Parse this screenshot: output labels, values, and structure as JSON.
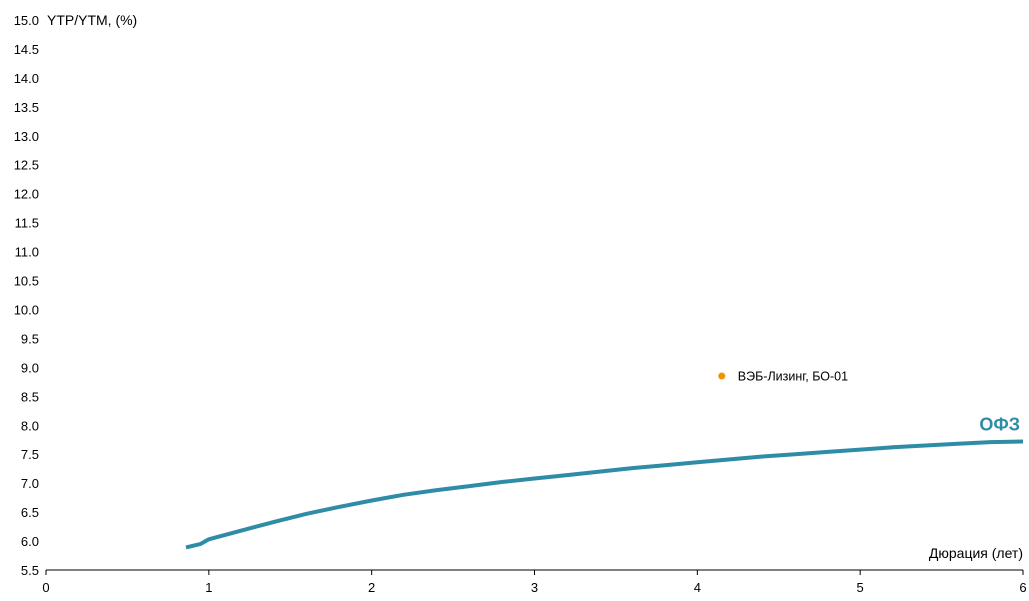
{
  "chart_data": {
    "type": "line",
    "ylabel": "YTP/YTM, (%)",
    "xlabel": "Дюрация (лет)",
    "xlim": [
      0,
      6
    ],
    "ylim": [
      5.5,
      15.0
    ],
    "x_ticks": [
      "0",
      "1",
      "2",
      "3",
      "4",
      "5",
      "6"
    ],
    "y_ticks": [
      "5.5",
      "6.0",
      "6.5",
      "7.0",
      "7.5",
      "8.0",
      "8.5",
      "9.0",
      "9.5",
      "10.0",
      "10.5",
      "11.0",
      "11.5",
      "12.0",
      "12.5",
      "13.0",
      "13.5",
      "14.0",
      "14.5",
      "15.0"
    ],
    "grid": false,
    "series": [
      {
        "name": "ОФЗ",
        "type": "line",
        "color": "#2e8ca7",
        "x": [
          0.86,
          0.95,
          1.0,
          1.2,
          1.4,
          1.6,
          1.8,
          2.0,
          2.2,
          2.4,
          2.6,
          2.8,
          3.0,
          3.2,
          3.4,
          3.6,
          3.8,
          4.0,
          4.2,
          4.4,
          4.6,
          4.8,
          5.0,
          5.2,
          5.4,
          5.6,
          5.8,
          6.0
        ],
        "y": [
          5.89,
          5.95,
          6.03,
          6.18,
          6.33,
          6.47,
          6.59,
          6.7,
          6.8,
          6.88,
          6.95,
          7.02,
          7.08,
          7.14,
          7.2,
          7.26,
          7.31,
          7.36,
          7.41,
          7.46,
          7.5,
          7.54,
          7.58,
          7.62,
          7.65,
          7.68,
          7.71,
          7.72
        ]
      },
      {
        "name": "ВЭБ-Лизинг, БО-01",
        "type": "scatter",
        "color": "#f39200",
        "x": [
          4.15
        ],
        "y": [
          8.85
        ]
      }
    ]
  }
}
